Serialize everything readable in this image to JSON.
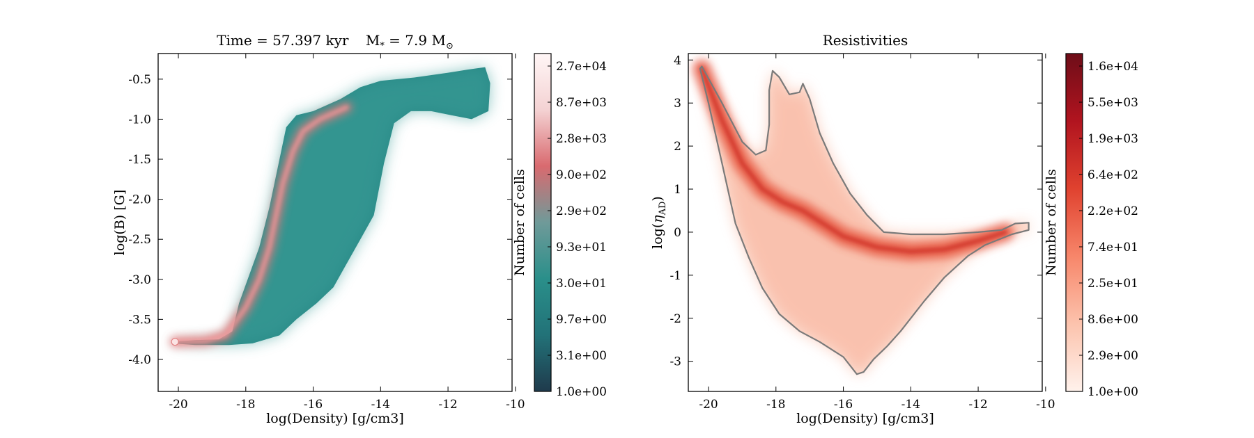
{
  "colors": {
    "left_map": [
      "#1f3a4c",
      "#227278",
      "#2a8f8a",
      "#6f9a99",
      "#d96a6f",
      "#f4d2d3",
      "#fff6f6"
    ],
    "right_map": [
      "#fff2ec",
      "#fcc3ad",
      "#f7866a",
      "#e0422f",
      "#b1141f",
      "#6e0d18"
    ],
    "contour": "#7a7a7a"
  },
  "chart_data": [
    {
      "type": "heatmap",
      "title": "Time = 57.397 kyr    M$_*$ = 7.9 M$_\\odot$",
      "title_parts": {
        "time_text": "Time = 57.397 kyr",
        "mass_text": "M",
        "mass_sub": "*",
        "mass_val": " = 7.9 M",
        "mass_unit_sub": "⊙"
      },
      "xlabel": "log(Density) [g/cm3]",
      "ylabel": "log(B) [G]",
      "xlim": [
        -20.6,
        -10.1
      ],
      "ylim": [
        -4.4,
        -0.18
      ],
      "xticks": [
        -20,
        -18,
        -16,
        -14,
        -12,
        -10
      ],
      "yticks": [
        -4.0,
        -3.5,
        -3.0,
        -2.5,
        -2.0,
        -1.5,
        -1.0,
        -0.5
      ],
      "xtick_labels": [
        "-20",
        "-18",
        "-16",
        "-14",
        "-12",
        "-10"
      ],
      "ytick_labels": [
        "-4.0",
        "-3.5",
        "-3.0",
        "-2.5",
        "-2.0",
        "-1.5",
        "-1.0",
        "-0.5"
      ],
      "region_outline": [
        [
          -20.2,
          -3.78
        ],
        [
          -19.5,
          -3.76
        ],
        [
          -18.8,
          -3.75
        ],
        [
          -18.4,
          -3.65
        ],
        [
          -18.2,
          -3.3
        ],
        [
          -17.9,
          -2.95
        ],
        [
          -17.6,
          -2.6
        ],
        [
          -17.3,
          -2.1
        ],
        [
          -17.0,
          -1.5
        ],
        [
          -16.8,
          -1.1
        ],
        [
          -16.5,
          -0.95
        ],
        [
          -16.0,
          -0.9
        ],
        [
          -15.2,
          -0.75
        ],
        [
          -14.6,
          -0.6
        ],
        [
          -14.0,
          -0.52
        ],
        [
          -13.0,
          -0.48
        ],
        [
          -12.0,
          -0.42
        ],
        [
          -11.4,
          -0.38
        ],
        [
          -10.9,
          -0.35
        ],
        [
          -10.75,
          -0.55
        ],
        [
          -10.8,
          -0.9
        ],
        [
          -11.3,
          -1.0
        ],
        [
          -11.9,
          -0.95
        ],
        [
          -12.5,
          -0.9
        ],
        [
          -13.1,
          -0.9
        ],
        [
          -13.6,
          -1.05
        ],
        [
          -13.9,
          -1.55
        ],
        [
          -14.2,
          -2.2
        ],
        [
          -14.6,
          -2.5
        ],
        [
          -15.0,
          -2.8
        ],
        [
          -15.4,
          -3.1
        ],
        [
          -15.9,
          -3.3
        ],
        [
          -16.5,
          -3.5
        ],
        [
          -17.0,
          -3.7
        ],
        [
          -17.8,
          -3.8
        ],
        [
          -18.5,
          -3.82
        ],
        [
          -19.5,
          -3.82
        ],
        [
          -20.2,
          -3.8
        ]
      ],
      "ridge": [
        [
          -20.1,
          -3.78
        ],
        [
          -19.2,
          -3.77
        ],
        [
          -18.6,
          -3.7
        ],
        [
          -18.0,
          -3.35
        ],
        [
          -17.6,
          -3.0
        ],
        [
          -17.3,
          -2.6
        ],
        [
          -17.1,
          -2.2
        ],
        [
          -16.9,
          -1.8
        ],
        [
          -16.6,
          -1.4
        ],
        [
          -16.3,
          -1.15
        ],
        [
          -15.8,
          -1.0
        ],
        [
          -15.0,
          -0.85
        ]
      ],
      "colorbar": {
        "label": "Number of cells",
        "ticks": [
          "1.0e+00",
          "3.1e+00",
          "9.7e+00",
          "3.0e+01",
          "9.3e+01",
          "2.9e+02",
          "9.0e+02",
          "2.8e+03",
          "8.7e+03",
          "2.7e+04"
        ]
      }
    },
    {
      "type": "heatmap",
      "title": "Resistivities",
      "xlabel": "log(Density) [g/cm3]",
      "ylabel": "log($\\eta_{\\rm AD}$)",
      "ylabel_parts": {
        "prefix": "log(",
        "eta": "η",
        "sub": "AD",
        "suffix": ")"
      },
      "xlim": [
        -20.6,
        -10.1
      ],
      "ylim": [
        -3.7,
        4.15
      ],
      "xticks": [
        -20,
        -18,
        -16,
        -14,
        -12,
        -10
      ],
      "yticks": [
        -3,
        -2,
        -1,
        0,
        1,
        2,
        3,
        4
      ],
      "xtick_labels": [
        "-20",
        "-18",
        "-16",
        "-14",
        "-12",
        "-10"
      ],
      "ytick_labels": [
        "-3",
        "-2",
        "-1",
        "0",
        "1",
        "2",
        "3",
        "4"
      ],
      "region_outline": [
        [
          -20.2,
          3.85
        ],
        [
          -19.6,
          3.0
        ],
        [
          -19.0,
          2.1
        ],
        [
          -18.6,
          1.8
        ],
        [
          -18.3,
          1.9
        ],
        [
          -18.2,
          2.5
        ],
        [
          -18.2,
          3.3
        ],
        [
          -18.1,
          3.75
        ],
        [
          -17.9,
          3.6
        ],
        [
          -17.6,
          3.2
        ],
        [
          -17.3,
          3.25
        ],
        [
          -17.2,
          3.45
        ],
        [
          -17.0,
          3.1
        ],
        [
          -16.7,
          2.3
        ],
        [
          -16.3,
          1.6
        ],
        [
          -15.8,
          0.9
        ],
        [
          -15.3,
          0.4
        ],
        [
          -14.8,
          0.0
        ],
        [
          -14.0,
          -0.05
        ],
        [
          -13.0,
          -0.05
        ],
        [
          -12.0,
          0.0
        ],
        [
          -11.3,
          0.05
        ],
        [
          -10.9,
          0.2
        ],
        [
          -10.5,
          0.22
        ],
        [
          -10.5,
          0.05
        ],
        [
          -11.0,
          -0.05
        ],
        [
          -11.8,
          -0.3
        ],
        [
          -12.3,
          -0.55
        ],
        [
          -13.0,
          -1.05
        ],
        [
          -13.6,
          -1.6
        ],
        [
          -14.3,
          -2.3
        ],
        [
          -14.7,
          -2.65
        ],
        [
          -15.1,
          -2.95
        ],
        [
          -15.4,
          -3.25
        ],
        [
          -15.6,
          -3.3
        ],
        [
          -16.0,
          -2.9
        ],
        [
          -16.7,
          -2.55
        ],
        [
          -17.3,
          -2.3
        ],
        [
          -17.9,
          -1.9
        ],
        [
          -18.4,
          -1.3
        ],
        [
          -18.8,
          -0.6
        ],
        [
          -19.2,
          0.2
        ],
        [
          -19.6,
          1.6
        ],
        [
          -20.0,
          3.0
        ],
        [
          -20.25,
          3.8
        ]
      ],
      "ridge": [
        [
          -20.2,
          3.8
        ],
        [
          -19.6,
          2.6
        ],
        [
          -19.0,
          1.6
        ],
        [
          -18.4,
          1.0
        ],
        [
          -17.8,
          0.7
        ],
        [
          -17.2,
          0.5
        ],
        [
          -16.6,
          0.2
        ],
        [
          -16.0,
          -0.1
        ],
        [
          -15.0,
          -0.35
        ],
        [
          -14.0,
          -0.45
        ],
        [
          -13.0,
          -0.4
        ],
        [
          -12.0,
          -0.2
        ],
        [
          -11.2,
          0.0
        ]
      ],
      "colorbar": {
        "label": "Number of cells",
        "ticks": [
          "1.0e+00",
          "2.9e+00",
          "8.6e+00",
          "2.5e+01",
          "7.4e+01",
          "2.2e+02",
          "6.4e+02",
          "1.9e+03",
          "5.5e+03",
          "1.6e+04"
        ]
      }
    }
  ]
}
